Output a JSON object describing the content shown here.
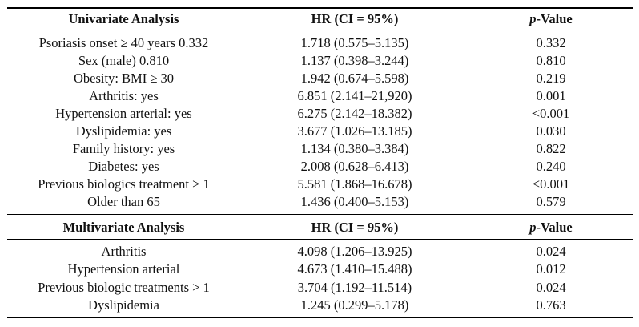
{
  "univariate": {
    "header": {
      "col1": "Univariate Analysis",
      "col2": "HR (CI = 95%)",
      "col3_italic": "p",
      "col3_rest": "-Value"
    },
    "rows": [
      [
        "Psoriasis onset ≥ 40 years 0.332",
        "1.718 (0.575–5.135)",
        "0.332"
      ],
      [
        "Sex (male) 0.810",
        "1.137 (0.398–3.244)",
        "0.810"
      ],
      [
        "Obesity: BMI ≥ 30",
        "1.942 (0.674–5.598)",
        "0.219"
      ],
      [
        "Arthritis: yes",
        "6.851 (2.141–21,920)",
        "0.001"
      ],
      [
        "Hypertension arterial: yes",
        "6.275 (2.142–18.382)",
        "<0.001"
      ],
      [
        "Dyslipidemia: yes",
        "3.677 (1.026–13.185)",
        "0.030"
      ],
      [
        "Family history: yes",
        "1.134 (0.380–3.384)",
        "0.822"
      ],
      [
        "Diabetes: yes",
        "2.008 (0.628–6.413)",
        "0.240"
      ],
      [
        "Previous biologics treatment > 1",
        "5.581 (1.868–16.678)",
        "<0.001"
      ],
      [
        "Older than 65",
        "1.436 (0.400–5.153)",
        "0.579"
      ]
    ]
  },
  "multivariate": {
    "header": {
      "col1": "Multivariate Analysis",
      "col2": "HR (CI = 95%)",
      "col3_italic": "p",
      "col3_rest": "-Value"
    },
    "rows": [
      [
        "Arthritis",
        "4.098 (1.206–13.925)",
        "0.024"
      ],
      [
        "Hypertension arterial",
        "4.673 (1.410–15.488)",
        "0.012"
      ],
      [
        "Previous biologic treatments > 1",
        "3.704 (1.192–11.514)",
        "0.024"
      ],
      [
        "Dyslipidemia",
        "1.245 (0.299–5.178)",
        "0.763"
      ]
    ]
  }
}
